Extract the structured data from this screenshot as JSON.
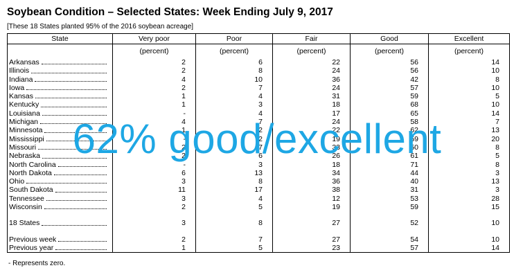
{
  "title": "Soybean Condition – Selected States: Week Ending July 9, 2017",
  "subtitle": "[These 18 States planted 95% of the 2016 soybean acreage]",
  "table": {
    "columns": [
      "State",
      "Very poor",
      "Poor",
      "Fair",
      "Good",
      "Excellent"
    ],
    "unit": "(percent)",
    "rows": [
      [
        "Arkansas",
        "2",
        "6",
        "22",
        "56",
        "14"
      ],
      [
        "Illinois",
        "2",
        "8",
        "24",
        "56",
        "10"
      ],
      [
        "Indiana",
        "4",
        "10",
        "36",
        "42",
        "8"
      ],
      [
        "Iowa",
        "2",
        "7",
        "24",
        "57",
        "10"
      ],
      [
        "Kansas",
        "1",
        "4",
        "31",
        "59",
        "5"
      ],
      [
        "Kentucky",
        "1",
        "3",
        "18",
        "68",
        "10"
      ],
      [
        "Louisiana",
        "-",
        "4",
        "17",
        "65",
        "14"
      ],
      [
        "Michigan",
        "4",
        "7",
        "24",
        "58",
        "7"
      ],
      [
        "Minnesota",
        "1",
        "2",
        "22",
        "62",
        "13"
      ],
      [
        "Mississippi",
        "-",
        "2",
        "19",
        "59",
        "20"
      ],
      [
        "Missouri",
        "2",
        "7",
        "33",
        "50",
        "8"
      ],
      [
        "Nebraska",
        "2",
        "6",
        "26",
        "61",
        "5"
      ],
      [
        "North Carolina",
        "-",
        "3",
        "18",
        "71",
        "8"
      ],
      [
        "North Dakota",
        "6",
        "13",
        "34",
        "44",
        "3"
      ],
      [
        "Ohio",
        "3",
        "8",
        "36",
        "40",
        "13"
      ],
      [
        "South Dakota",
        "11",
        "17",
        "38",
        "31",
        "3"
      ],
      [
        "Tennessee",
        "3",
        "4",
        "12",
        "53",
        "28"
      ],
      [
        "Wisconsin",
        "2",
        "5",
        "19",
        "59",
        "15"
      ]
    ],
    "total_rows": [
      [
        "18 States",
        "3",
        "8",
        "27",
        "52",
        "10"
      ]
    ],
    "comparison_rows": [
      [
        "Previous week",
        "2",
        "7",
        "27",
        "54",
        "10"
      ],
      [
        "Previous year",
        "1",
        "5",
        "23",
        "57",
        "14"
      ]
    ]
  },
  "note": "- Represents zero.",
  "overlay": "62% good/excellent"
}
